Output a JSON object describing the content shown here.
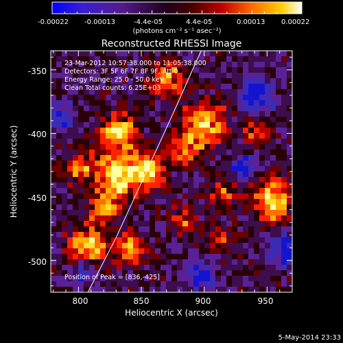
{
  "colorbar": {
    "tick_labels": [
      "-0.00022",
      "-0.00013",
      "-4.4e-05",
      "4.4e-05",
      "0.00013",
      "0.00022"
    ],
    "unit_label": "(photons cm⁻² s⁻¹ asec⁻²)",
    "colormap": [
      "#0000ff",
      "#4b2bbf",
      "#3a0a3c",
      "#000000",
      "#8a0000",
      "#ff2a00",
      "#ff9a00",
      "#ffe000",
      "#ffffff"
    ]
  },
  "image": {
    "title": "Reconstructed RHESSI Image",
    "x_label": "Heliocentric X (arcsec)",
    "y_label": "Heliocentric Y (arcsec)",
    "x_ticks": [
      "800",
      "850",
      "900",
      "950"
    ],
    "y_ticks": [
      "-350",
      "-400",
      "-450",
      "-500"
    ],
    "x_range": [
      778,
      970
    ],
    "y_range": [
      -525,
      -335
    ],
    "info_lines": [
      "23-Mar-2012 10:57:38.000 to 11:05:38.000",
      "Detectors: 3F 5F 6F 7F 8F 9F, Att 0",
      "Energy Range: 25.0 - 50.0 keV",
      "Clean    Total counts: 6.25E+03"
    ],
    "peak_label": "Position of Peak = [836,-425]",
    "limb_color": "#ffffff"
  },
  "footer": {
    "date_stamp": "5-May-2014 23:33"
  }
}
